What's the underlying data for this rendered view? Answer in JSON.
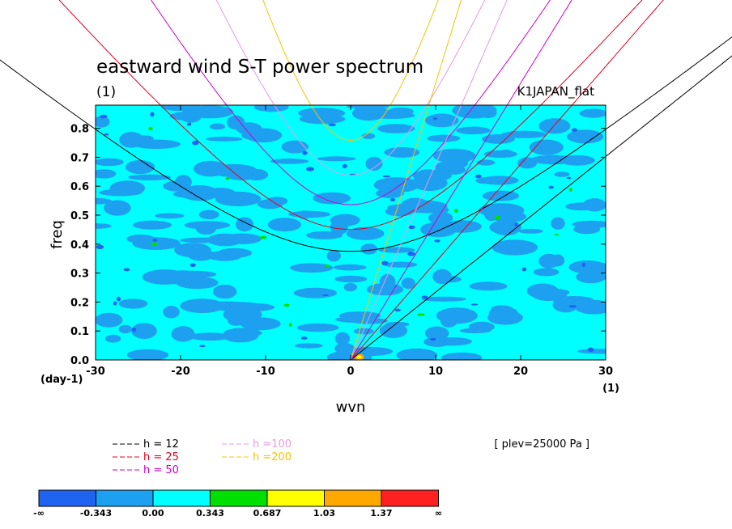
{
  "chart_data": {
    "type": "heatmap",
    "title": "eastward wind S-T power spectrum",
    "title_units": "(1)",
    "dataset_label": "K1JAPAN_flat",
    "xlabel": "wvn",
    "ylabel": "freq",
    "x_unit": "(1)",
    "y_unit": "(day-1)",
    "xlim": [
      -30,
      30
    ],
    "ylim": [
      0,
      0.88
    ],
    "x_ticks": [
      "-30",
      "-20",
      "-10",
      "0",
      "10",
      "20",
      "30"
    ],
    "y_ticks": [
      "0.0",
      "0.1",
      "0.2",
      "0.3",
      "0.4",
      "0.5",
      "0.6",
      "0.7",
      "0.8"
    ],
    "plev_note": "[ plev=25000 Pa ]",
    "field_description": "mostly between -0.343 and 0.343 with patches below -0.343; small peak near wvn=1, freq=0",
    "dispersion_curves": [
      {
        "label": "h = 12",
        "color": "#000000",
        "h": 12
      },
      {
        "label": "h = 25",
        "color": "#e0001e",
        "h": 25
      },
      {
        "label": "h = 50",
        "color": "#cc00cc",
        "h": 50
      },
      {
        "label": "h =100",
        "color": "#e39be0",
        "h": 100
      },
      {
        "label": "h =200",
        "color": "#f5c400",
        "h": 200
      }
    ],
    "colorbar": {
      "colors": [
        "#1e64f0",
        "#1ea0f0",
        "#00ffff",
        "#00e000",
        "#ffff00",
        "#ffa800",
        "#ff2020"
      ],
      "labels": [
        "-∞",
        "-0.343",
        "0.00",
        "0.343",
        "0.687",
        "1.03",
        "1.37",
        "∞"
      ]
    }
  }
}
